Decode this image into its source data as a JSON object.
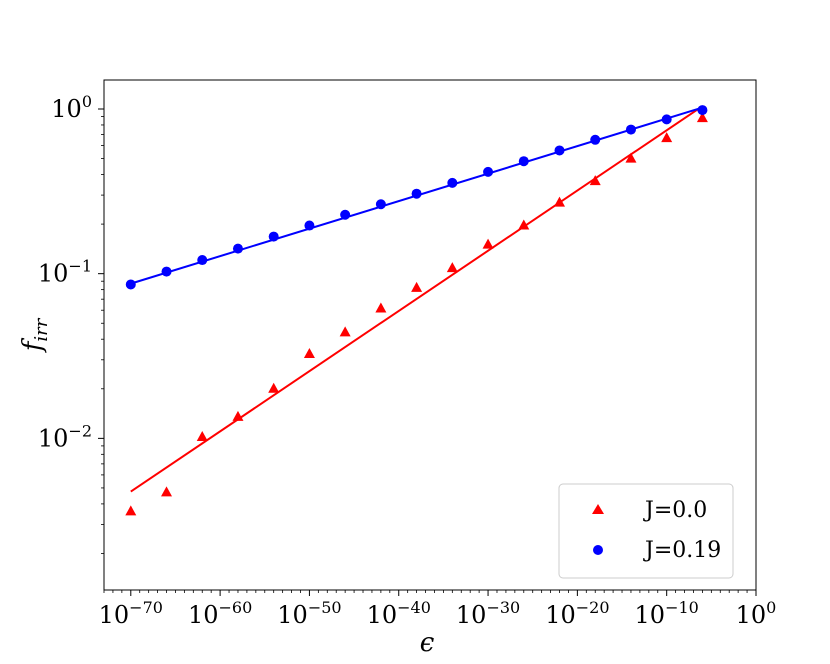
{
  "chart_data": {
    "type": "scatter",
    "xscale": "log",
    "yscale": "log",
    "xlim": [
      1e-73,
      1
    ],
    "ylim": [
      0.0012,
      1.5
    ],
    "xlabel": "ϵ",
    "ylabel": "f_irr",
    "ylabel_main": "f",
    "ylabel_sub": "irr",
    "grid": false,
    "legend_position": "lower-right",
    "x_ticks": [
      {
        "base": "10",
        "exp": "−70",
        "value": 1e-70
      },
      {
        "base": "10",
        "exp": "−60",
        "value": 1e-60
      },
      {
        "base": "10",
        "exp": "−50",
        "value": 1e-50
      },
      {
        "base": "10",
        "exp": "−40",
        "value": 1e-40
      },
      {
        "base": "10",
        "exp": "−30",
        "value": 1e-30
      },
      {
        "base": "10",
        "exp": "−20",
        "value": 1e-20
      },
      {
        "base": "10",
        "exp": "−10",
        "value": 1e-10
      },
      {
        "base": "10",
        "exp": "0",
        "value": 1
      }
    ],
    "y_ticks": [
      {
        "base": "10",
        "exp": "0",
        "value": 1
      },
      {
        "base": "10",
        "exp": "−1",
        "value": 0.1
      },
      {
        "base": "10",
        "exp": "−2",
        "value": 0.01
      }
    ],
    "series": [
      {
        "name": "J=0.0",
        "color": "#ff0000",
        "marker": "triangle",
        "points": [
          {
            "x": 1e-70,
            "y": 0.0036
          },
          {
            "x": 1e-66,
            "y": 0.0047
          },
          {
            "x": 1e-62,
            "y": 0.0102
          },
          {
            "x": 1e-58,
            "y": 0.0135
          },
          {
            "x": 1e-54,
            "y": 0.02
          },
          {
            "x": 1e-50,
            "y": 0.0325
          },
          {
            "x": 1e-46,
            "y": 0.044
          },
          {
            "x": 1e-42,
            "y": 0.0615
          },
          {
            "x": 1e-38,
            "y": 0.082
          },
          {
            "x": 1e-34,
            "y": 0.108
          },
          {
            "x": 1e-30,
            "y": 0.15
          },
          {
            "x": 1e-26,
            "y": 0.196
          },
          {
            "x": 1e-22,
            "y": 0.27
          },
          {
            "x": 1e-18,
            "y": 0.365
          },
          {
            "x": 1e-14,
            "y": 0.5
          },
          {
            "x": 1e-10,
            "y": 0.665
          },
          {
            "x": 1e-06,
            "y": 0.88
          }
        ],
        "fit": [
          {
            "x": 1e-70,
            "y": 0.00475
          },
          {
            "x": 1e-06,
            "y": 1.04
          }
        ]
      },
      {
        "name": "J=0.19",
        "color": "#0000ff",
        "marker": "circle",
        "points": [
          {
            "x": 1e-70,
            "y": 0.086
          },
          {
            "x": 1e-66,
            "y": 0.103
          },
          {
            "x": 1e-62,
            "y": 0.121
          },
          {
            "x": 1e-58,
            "y": 0.142
          },
          {
            "x": 1e-54,
            "y": 0.168
          },
          {
            "x": 1e-50,
            "y": 0.196
          },
          {
            "x": 1e-46,
            "y": 0.228
          },
          {
            "x": 1e-42,
            "y": 0.264
          },
          {
            "x": 1e-38,
            "y": 0.306
          },
          {
            "x": 1e-34,
            "y": 0.356
          },
          {
            "x": 1e-30,
            "y": 0.415
          },
          {
            "x": 1e-26,
            "y": 0.482
          },
          {
            "x": 1e-22,
            "y": 0.56
          },
          {
            "x": 1e-18,
            "y": 0.65
          },
          {
            "x": 1e-14,
            "y": 0.75
          },
          {
            "x": 1e-10,
            "y": 0.865
          },
          {
            "x": 1e-06,
            "y": 0.985
          }
        ],
        "fit": [
          {
            "x": 1e-70,
            "y": 0.087
          },
          {
            "x": 1e-06,
            "y": 1.02
          }
        ]
      }
    ]
  }
}
